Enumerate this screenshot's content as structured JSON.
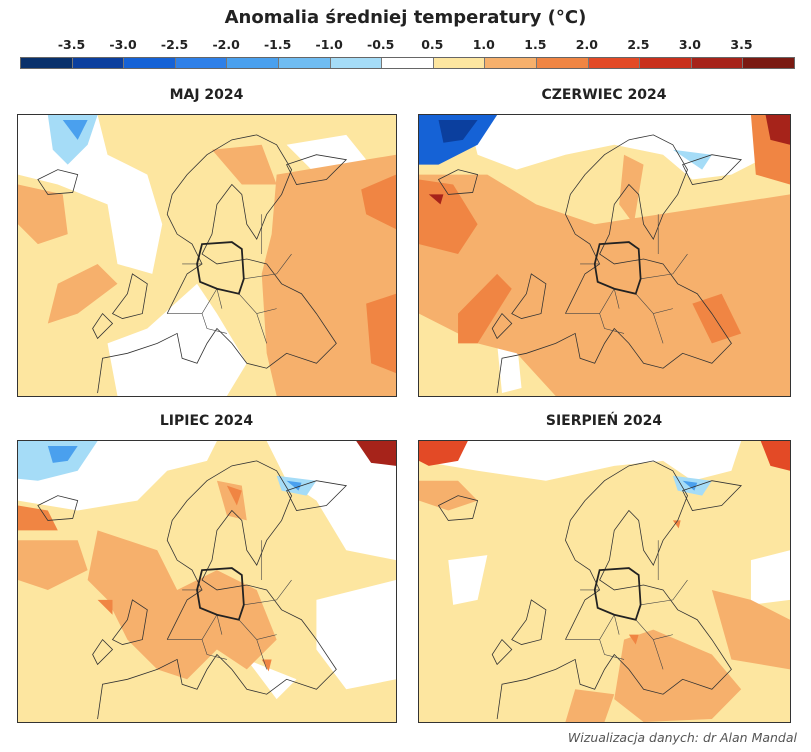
{
  "title": "Anomalia średniej temperatury (°C)",
  "colorbar": {
    "labels": [
      "-3.5",
      "-3.0",
      "-2.5",
      "-2.0",
      "-1.5",
      "-1.0",
      "-0.5",
      "0.5",
      "1.0",
      "1.5",
      "2.0",
      "2.5",
      "3.0",
      "3.5"
    ],
    "colors": [
      "#08306b",
      "#0b3f9e",
      "#1562d6",
      "#2f80e8",
      "#4aa0ee",
      "#6fbcf2",
      "#a5dcf7",
      "#ffffff",
      "#fde6a0",
      "#f6b06c",
      "#f08543",
      "#e34a26",
      "#c9301c",
      "#a6231a",
      "#7a1a12"
    ]
  },
  "panels": [
    {
      "title": "MAJ 2024"
    },
    {
      "title": "CZERWIEC 2024"
    },
    {
      "title": "LIPIEC 2024"
    },
    {
      "title": "SIERPIEŃ 2024"
    }
  ],
  "credit": "Wizualizacja danych: dr Alan Mandal"
}
